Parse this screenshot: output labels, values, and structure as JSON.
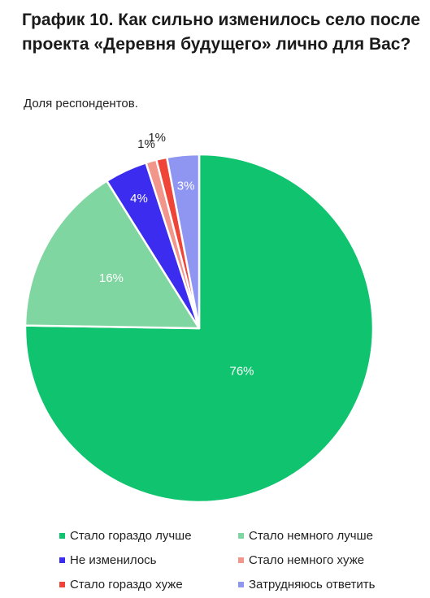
{
  "title": "График 10. Как сильно изменилось село после проекта «Деревня будущего» лично для Вас?",
  "subtitle": "Доля респондентов.",
  "chart_data": {
    "type": "pie",
    "categories": [
      "Стало гораздо лучше",
      "Стало немного лучше",
      "Не изменилось",
      "Стало немного хуже",
      "Стало гораздо хуже",
      "Затрудняюсь ответить"
    ],
    "values": [
      76,
      16,
      4,
      1,
      1,
      3
    ],
    "labels": [
      "76%",
      "16%",
      "4%",
      "1%",
      "1%",
      "3%"
    ],
    "colors": [
      "#10c36e",
      "#7fd6a0",
      "#3b2cf0",
      "#f2958a",
      "#ef4437",
      "#8f96f2"
    ],
    "legend_position": "bottom"
  },
  "legend": [
    {
      "label": "Стало гораздо лучше",
      "color": "#10c36e"
    },
    {
      "label": "Стало немного лучше",
      "color": "#7fd6a0"
    },
    {
      "label": "Не изменилось",
      "color": "#3b2cf0"
    },
    {
      "label": "Стало немного хуже",
      "color": "#f2958a"
    },
    {
      "label": "Стало гораздо хуже",
      "color": "#ef4437"
    },
    {
      "label": "Затрудняюсь ответить",
      "color": "#8f96f2"
    }
  ]
}
